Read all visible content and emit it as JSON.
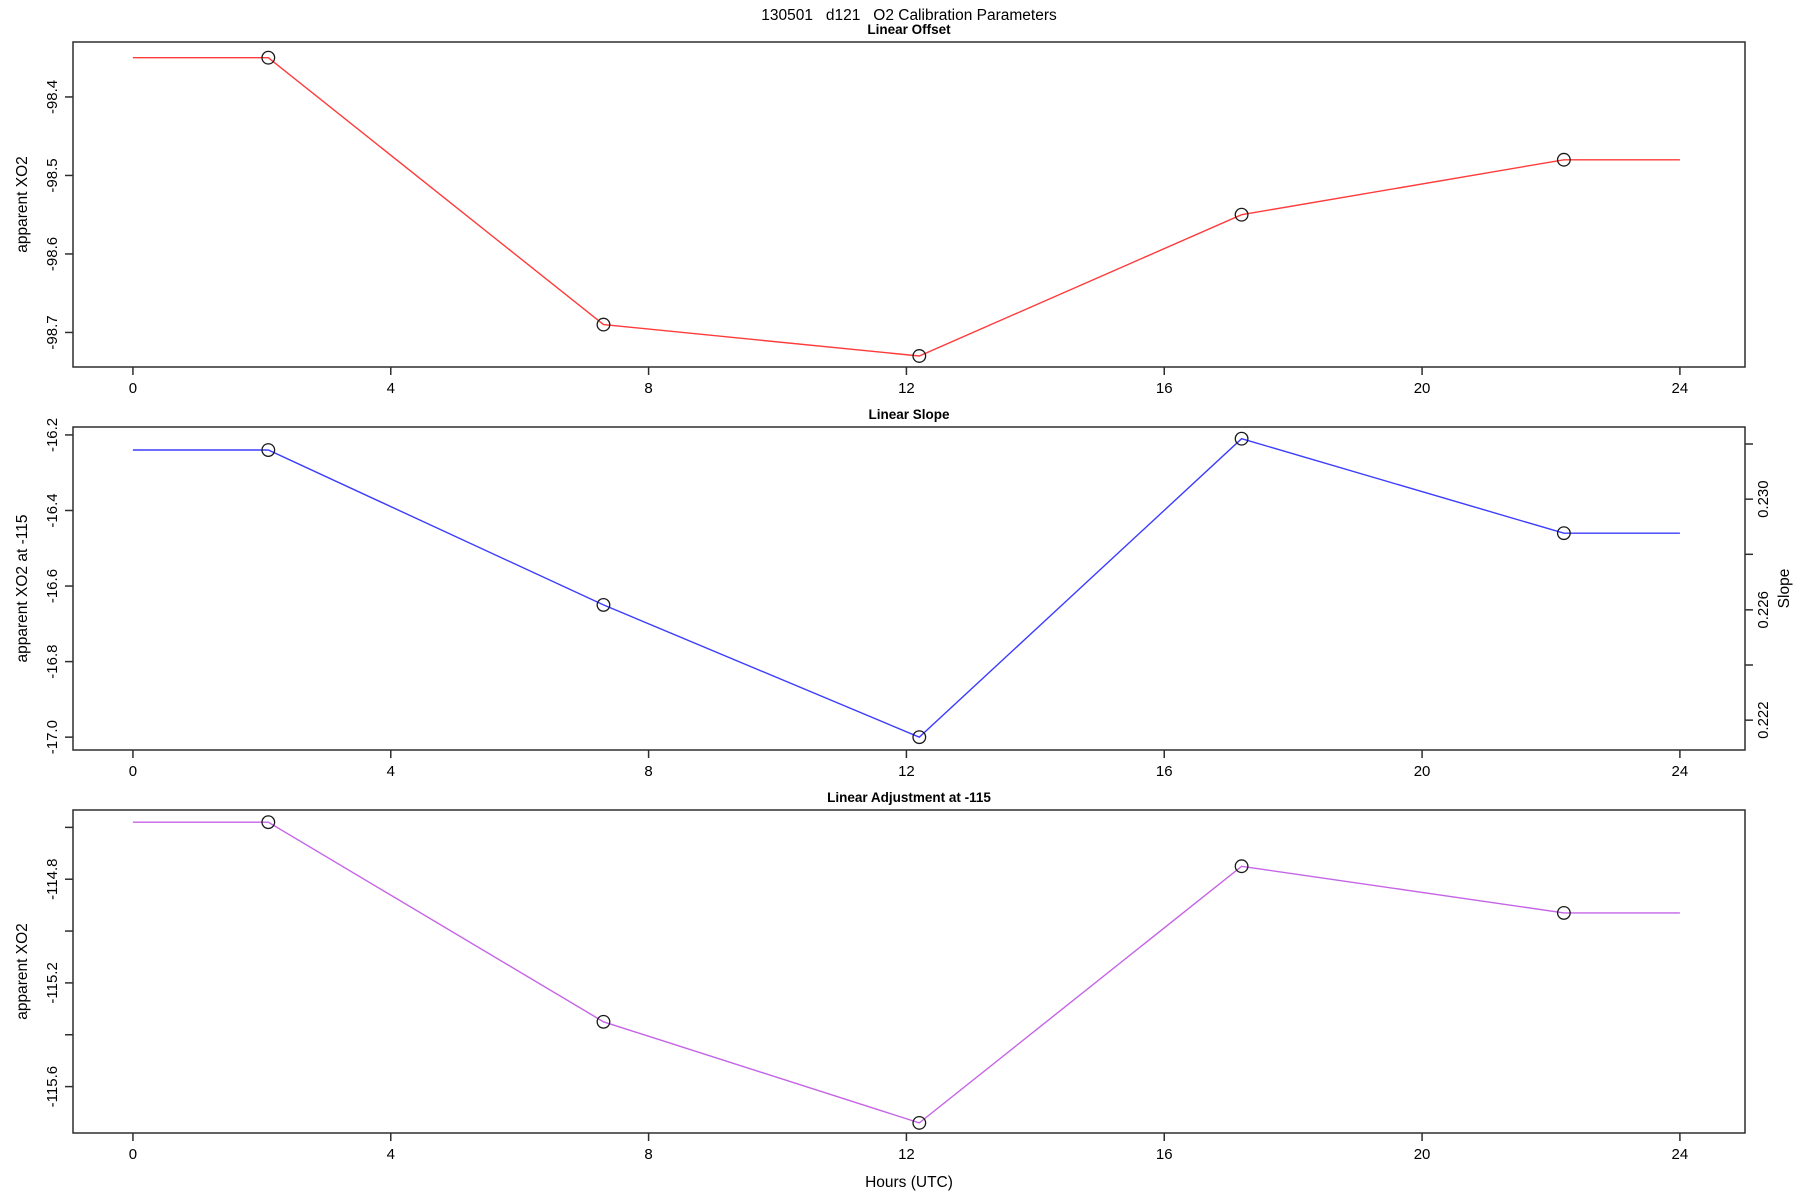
{
  "chart_data": {
    "type": "line",
    "title": "130501   d121   O2 Calibration Parameters",
    "x_label": "Hours (UTC)",
    "x_ticks": [
      0,
      4,
      8,
      12,
      16,
      20,
      24
    ],
    "x_tick_labels": [
      "0",
      "4",
      "8",
      "12",
      "16",
      "20",
      "24"
    ],
    "xlim": [
      -0.93,
      25.01
    ],
    "grid": false,
    "marker": "open-circle",
    "marker_color": "#1a1a1a",
    "axis_color": "#2e2e2e",
    "background": "#ffffff",
    "x": [
      2.1,
      7.3,
      12.2,
      17.2,
      22.2
    ],
    "line_edge_extension_x": [
      0,
      24
    ],
    "panels": [
      {
        "title": "Linear Offset",
        "y_label": "apparent XO2",
        "line_color": "#ff3b3b",
        "values": [
          -98.35,
          -98.69,
          -98.73,
          -98.55,
          -98.48
        ],
        "ylim": [
          -98.744,
          -98.33
        ],
        "y_ticks": [
          {
            "v": -98.4,
            "label": "-98.4"
          },
          {
            "v": -98.5,
            "label": "-98.5"
          },
          {
            "v": -98.6,
            "label": "-98.6"
          },
          {
            "v": -98.7,
            "label": "-98.7"
          }
        ]
      },
      {
        "title": "Linear Slope",
        "y_label": "apparent XO2 at -115",
        "line_color": "#3c3cff",
        "values": [
          -16.24,
          -16.65,
          -17.0,
          -16.21,
          -16.46
        ],
        "ylim": [
          -17.034,
          -16.179
        ],
        "y_ticks": [
          {
            "v": -16.2,
            "label": "-16.2"
          },
          {
            "v": -16.4,
            "label": "-16.4"
          },
          {
            "v": -16.6,
            "label": "-16.6"
          },
          {
            "v": -16.8,
            "label": "-16.8"
          },
          {
            "v": -17.0,
            "label": "-17.0"
          }
        ],
        "right_axis": {
          "label": "Slope",
          "series_slope_values": [
            0.2318,
            0.2262,
            0.2214,
            0.2322,
            0.2288
          ],
          "ticks": [
            {
              "slope": 0.232,
              "v": -16.224,
              "label": ""
            },
            {
              "slope": 0.23,
              "v": -16.37,
              "label": "0.230"
            },
            {
              "slope": 0.228,
              "v": -16.516,
              "label": ""
            },
            {
              "slope": 0.226,
              "v": -16.663,
              "label": "0.226"
            },
            {
              "slope": 0.224,
              "v": -16.809,
              "label": ""
            },
            {
              "slope": 0.222,
              "v": -16.955,
              "label": "0.222"
            }
          ]
        }
      },
      {
        "title": "Linear Adjustment at -115",
        "y_label": "apparent XO2",
        "line_color": "#c564e6",
        "values": [
          -114.58,
          -115.35,
          -115.74,
          -114.75,
          -114.93
        ],
        "ylim": [
          -115.779,
          -114.533
        ],
        "y_ticks": [
          {
            "v": -114.6,
            "label": ""
          },
          {
            "v": -114.8,
            "label": "-114.8"
          },
          {
            "v": -115.0,
            "label": ""
          },
          {
            "v": -115.2,
            "label": "-115.2"
          },
          {
            "v": -115.4,
            "label": ""
          },
          {
            "v": -115.6,
            "label": "-115.6"
          }
        ]
      }
    ]
  }
}
